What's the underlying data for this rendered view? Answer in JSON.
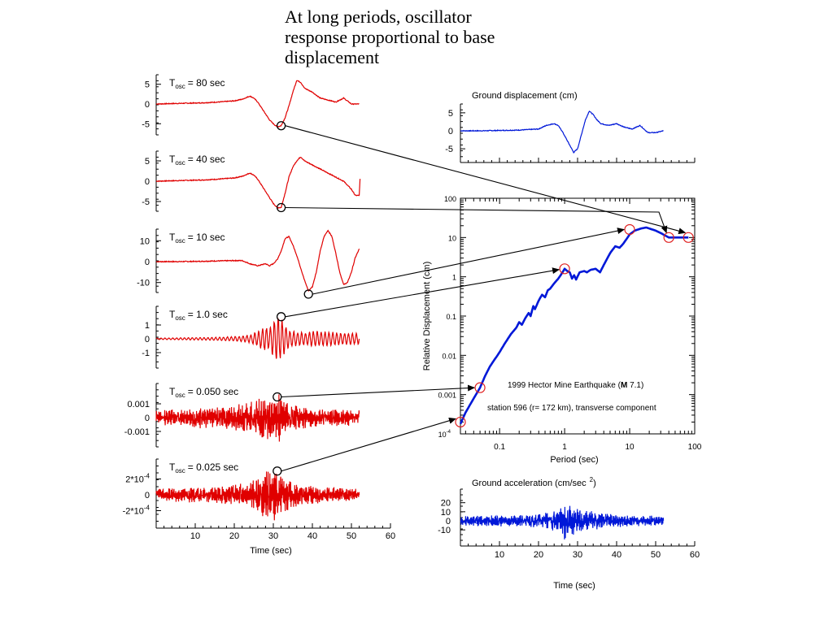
{
  "slide": {
    "title_lines": [
      "At long periods, oscillator",
      "response proportional to base",
      "displacement"
    ]
  },
  "colors": {
    "oscillator": "#e00000",
    "ground": "#0018d8",
    "marker_dark": "#000000",
    "marker_red": "#e02020"
  },
  "chart_data": [
    {
      "id": "osc-80",
      "type": "line",
      "label": {
        "prefix": "T",
        "sub": "osc",
        "rest": "= 80  sec"
      },
      "yticks": [
        {
          "v": 5,
          "t": "5"
        },
        {
          "v": 0,
          "t": "0"
        },
        {
          "v": -5,
          "t": "-5"
        }
      ],
      "ylim": [
        -7,
        7
      ],
      "xlim": [
        0,
        60
      ],
      "marker_at": {
        "x": 32,
        "y": -5.5
      },
      "series": [
        {
          "x": [
            0,
            4,
            8,
            12,
            16,
            20,
            22,
            24,
            25,
            26,
            27,
            28,
            29,
            30,
            31,
            32,
            33,
            34,
            35,
            36,
            37,
            38,
            40,
            42,
            44,
            46,
            48,
            50,
            52
          ],
          "y": [
            0,
            0.1,
            0.2,
            0.3,
            0.5,
            0.8,
            1.2,
            2,
            1.5,
            0.5,
            -1,
            -2.5,
            -4,
            -5,
            -5.8,
            -5.5,
            -3.5,
            -0.5,
            3,
            6,
            5.5,
            4,
            3,
            1.5,
            1,
            0.5,
            1.5,
            0,
            0
          ]
        }
      ]
    },
    {
      "id": "osc-40",
      "type": "line",
      "label": {
        "prefix": "T",
        "sub": "osc",
        "rest": "= 40  sec"
      },
      "yticks": [
        {
          "v": 5,
          "t": "5"
        },
        {
          "v": 0,
          "t": "0"
        },
        {
          "v": -5,
          "t": "-5"
        }
      ],
      "ylim": [
        -7,
        7
      ],
      "xlim": [
        0,
        60
      ],
      "marker_at": {
        "x": 32,
        "y": -6.5
      },
      "series": [
        {
          "x": [
            0,
            4,
            8,
            12,
            16,
            20,
            22,
            24,
            25,
            26,
            27,
            28,
            29,
            30,
            31,
            32,
            33,
            34,
            35,
            36,
            37,
            38,
            40,
            42,
            44,
            46,
            48,
            50,
            51,
            52,
            52.2
          ],
          "y": [
            0,
            0.1,
            0.2,
            0.3,
            0.5,
            0.8,
            1.2,
            2,
            1.5,
            0.5,
            -1,
            -2.5,
            -4,
            -5.5,
            -6.5,
            -6.5,
            -3,
            1,
            3.5,
            5,
            6,
            5,
            4,
            3,
            2,
            1,
            0,
            -2,
            -3.5,
            -3.5,
            0.5
          ]
        }
      ]
    },
    {
      "id": "osc-10",
      "type": "line",
      "label": {
        "prefix": "T",
        "sub": "osc",
        "rest": "= 10  sec"
      },
      "yticks": [
        {
          "v": 10,
          "t": "10"
        },
        {
          "v": 0,
          "t": "0"
        },
        {
          "v": -10,
          "t": "-10"
        }
      ],
      "ylim": [
        -14,
        14
      ],
      "xlim": [
        0,
        60
      ],
      "marker_at": {
        "x": 39,
        "y": -16
      },
      "series": [
        {
          "x": [
            0,
            5,
            10,
            15,
            20,
            22,
            24,
            26,
            28,
            29,
            30,
            31,
            32,
            33,
            34,
            35,
            36,
            37,
            38,
            39,
            40,
            41,
            42,
            43,
            44,
            45,
            46,
            47,
            48,
            49,
            50,
            51,
            52
          ],
          "y": [
            0,
            0,
            0.1,
            0.3,
            0.5,
            0.5,
            -1,
            -2,
            -1,
            -2,
            -1,
            1,
            5,
            11,
            12,
            8,
            3,
            -3,
            -9,
            -14,
            -12,
            -5,
            5,
            12,
            15,
            12,
            4,
            -5,
            -11,
            -10,
            -5,
            2,
            6
          ]
        }
      ]
    },
    {
      "id": "osc-1",
      "type": "line",
      "label": {
        "prefix": "T",
        "sub": "osc",
        "rest": "= 1.0  sec"
      },
      "yticks": [
        {
          "v": 1,
          "t": "1"
        },
        {
          "v": 0,
          "t": "0"
        },
        {
          "v": -1,
          "t": "-1"
        }
      ],
      "ylim": [
        -2,
        2
      ],
      "xlim": [
        0,
        60
      ],
      "marker_at": {
        "x": 32,
        "y": 1.6
      },
      "envelope": {
        "x": [
          0,
          5,
          10,
          15,
          20,
          24,
          26,
          28,
          29,
          30,
          31,
          32,
          33,
          34,
          36,
          38,
          40,
          44,
          48,
          52
        ],
        "a": [
          0.05,
          0.06,
          0.08,
          0.1,
          0.15,
          0.25,
          0.5,
          0.8,
          0.6,
          1.2,
          1.5,
          1.3,
          0.9,
          0.6,
          0.45,
          0.4,
          0.5,
          0.45,
          0.4,
          0.35
        ]
      },
      "freq": 1.0,
      "seed": 11
    },
    {
      "id": "osc-005",
      "type": "line",
      "label": {
        "prefix": "T",
        "sub": "osc",
        "rest": "= 0.050  sec"
      },
      "yticks": [
        {
          "v": 0.001,
          "t": "0.001"
        },
        {
          "v": 0,
          "t": "0"
        },
        {
          "v": -0.001,
          "t": "-0.001"
        }
      ],
      "ylim": [
        -0.002,
        0.002
      ],
      "xlim": [
        0,
        60
      ],
      "marker_at": {
        "x": 31,
        "y": 0.0015
      },
      "envelope": {
        "x": [
          0,
          5,
          10,
          15,
          20,
          24,
          26,
          28,
          30,
          31,
          32,
          33,
          34,
          36,
          40,
          44,
          48,
          52
        ],
        "a": [
          0.0004,
          0.0005,
          0.0006,
          0.0006,
          0.0007,
          0.0009,
          0.0012,
          0.0014,
          0.0015,
          0.0014,
          0.0013,
          0.0011,
          0.0009,
          0.0007,
          0.0006,
          0.0005,
          0.0005,
          0.0004
        ]
      },
      "noise": true,
      "seed": 23
    },
    {
      "id": "osc-0025",
      "type": "line",
      "label": {
        "prefix": "T",
        "sub": "osc",
        "rest": "= 0.025  sec"
      },
      "yticks": [
        {
          "v": 0.0002,
          "t": "2*10",
          "sup": "-4"
        },
        {
          "v": 0,
          "t": "0"
        },
        {
          "v": -0.0002,
          "t": "-2*10",
          "sup": "-4"
        }
      ],
      "ylim": [
        -0.0004,
        0.0004
      ],
      "xlim": [
        0,
        60
      ],
      "marker_at": {
        "x": 31,
        "y": 0.0003
      },
      "envelope": {
        "x": [
          0,
          5,
          10,
          15,
          20,
          24,
          26,
          28,
          30,
          31,
          32,
          33,
          34,
          36,
          40,
          44,
          48,
          52
        ],
        "a": [
          6e-05,
          7e-05,
          8e-05,
          8e-05,
          0.0001,
          0.00013,
          0.00018,
          0.00024,
          0.00027,
          0.00025,
          0.00022,
          0.00018,
          0.00015,
          0.00011,
          9e-05,
          8e-05,
          7e-05,
          6e-05
        ]
      },
      "noise": true,
      "seed": 37
    },
    {
      "id": "ground-displacement",
      "type": "line",
      "title": "Ground    displacement      (cm)",
      "yticks": [
        {
          "v": 5,
          "t": "5"
        },
        {
          "v": 0,
          "t": "0"
        },
        {
          "v": -5,
          "t": "-5"
        }
      ],
      "ylim": [
        -7,
        7
      ],
      "xlim": [
        0,
        60
      ],
      "series": [
        {
          "x": [
            0,
            5,
            10,
            15,
            20,
            22,
            24,
            25,
            26,
            27,
            28,
            29,
            30,
            31,
            32,
            33,
            34,
            35,
            36,
            38,
            40,
            42,
            44,
            46,
            48,
            50,
            52
          ],
          "y": [
            0,
            0,
            0.1,
            0.2,
            0.5,
            1.5,
            2,
            1.5,
            0,
            -2,
            -4,
            -6,
            -5,
            -1,
            3,
            5.5,
            4.5,
            3,
            2,
            1.5,
            2,
            1,
            0.5,
            1.5,
            -0.5,
            -0.5,
            0
          ]
        }
      ]
    },
    {
      "id": "response-spectrum",
      "type": "line",
      "xscale": "log",
      "yscale": "log",
      "xlim": [
        0.025,
        100
      ],
      "ylim": [
        0.0001,
        100
      ],
      "xlabel": "Period   (sec)",
      "ylabel": "Relative  Displacement  (cm)",
      "xticks": [
        {
          "v": 0.1,
          "t": "0.1"
        },
        {
          "v": 1,
          "t": "1"
        },
        {
          "v": 10,
          "t": "10"
        },
        {
          "v": 100,
          "t": "100"
        }
      ],
      "yticks": [
        {
          "v": 100,
          "t": "100"
        },
        {
          "v": 10,
          "t": "10"
        },
        {
          "v": 1,
          "t": "1"
        },
        {
          "v": 0.1,
          "t": "0.1"
        },
        {
          "v": 0.01,
          "t": "0.01"
        },
        {
          "v": 0.001,
          "t": "0.001"
        },
        {
          "v": 0.0001,
          "t": "10",
          "sup": "-4"
        }
      ],
      "annotations": [
        "1999  Hector  Mine  Earthquake   (",
        "M",
        " 7.1)",
        "station   596   (r=  172  km),  transverse    component"
      ],
      "series": [
        {
          "x": [
            0.025,
            0.03,
            0.04,
            0.05,
            0.06,
            0.07,
            0.08,
            0.1,
            0.12,
            0.15,
            0.18,
            0.2,
            0.22,
            0.25,
            0.28,
            0.3,
            0.33,
            0.35,
            0.4,
            0.45,
            0.5,
            0.55,
            0.6,
            0.7,
            0.8,
            0.9,
            1.0,
            1.1,
            1.2,
            1.3,
            1.4,
            1.5,
            1.7,
            2.0,
            2.2,
            2.5,
            3.0,
            3.5,
            4.0,
            5.0,
            6.0,
            7.0,
            8.0,
            10,
            12,
            15,
            18,
            20,
            25,
            30,
            40,
            50,
            60,
            80
          ],
          "y": [
            0.00018,
            0.00035,
            0.0008,
            0.0015,
            0.003,
            0.005,
            0.007,
            0.012,
            0.02,
            0.035,
            0.05,
            0.07,
            0.06,
            0.09,
            0.12,
            0.1,
            0.18,
            0.15,
            0.25,
            0.35,
            0.3,
            0.45,
            0.5,
            0.7,
            0.9,
            1.2,
            1.6,
            1.4,
            1.3,
            0.9,
            1.1,
            0.85,
            1.3,
            1.4,
            1.3,
            1.5,
            1.6,
            1.3,
            2.0,
            4.0,
            6.0,
            5.5,
            7.0,
            12,
            15,
            17,
            18,
            17,
            15,
            13,
            10,
            10,
            10,
            10
          ]
        }
      ],
      "circles": [
        {
          "x": 0.025,
          "y": 0.0002
        },
        {
          "x": 0.05,
          "y": 0.0015
        },
        {
          "x": 1.0,
          "y": 1.6
        },
        {
          "x": 10,
          "y": 16
        },
        {
          "x": 40,
          "y": 10
        },
        {
          "x": 80,
          "y": 10
        }
      ]
    },
    {
      "id": "ground-acceleration",
      "type": "line",
      "title": "Ground     acceleration      (cm/sec",
      "title_sup": "2",
      "title_end": ")",
      "yticks": [
        {
          "v": 20,
          "t": "20"
        },
        {
          "v": 10,
          "t": "10"
        },
        {
          "v": 0,
          "t": "0"
        },
        {
          "v": -10,
          "t": "-10"
        }
      ],
      "ylim": [
        -16,
        26
      ],
      "xlim": [
        0,
        60
      ],
      "envelope": {
        "x": [
          0,
          5,
          10,
          15,
          20,
          22,
          24,
          26,
          27,
          28,
          29,
          30,
          31,
          32,
          34,
          36,
          40,
          44,
          48,
          52
        ],
        "a": [
          4,
          5,
          5,
          5,
          6,
          7,
          10,
          14,
          17,
          18,
          16,
          14,
          12,
          10,
          8,
          7,
          6,
          5,
          5,
          4
        ]
      },
      "noise": true,
      "seed": 53
    }
  ],
  "axes_shared": {
    "time_ticks": [
      {
        "v": 10,
        "t": "10"
      },
      {
        "v": 20,
        "t": "20"
      },
      {
        "v": 30,
        "t": "30"
      },
      {
        "v": 40,
        "t": "40"
      },
      {
        "v": 50,
        "t": "50"
      },
      {
        "v": 60,
        "t": "60"
      }
    ],
    "left_xlabel": "Time    (sec)",
    "right_xlabel": "Time    (sec)"
  }
}
